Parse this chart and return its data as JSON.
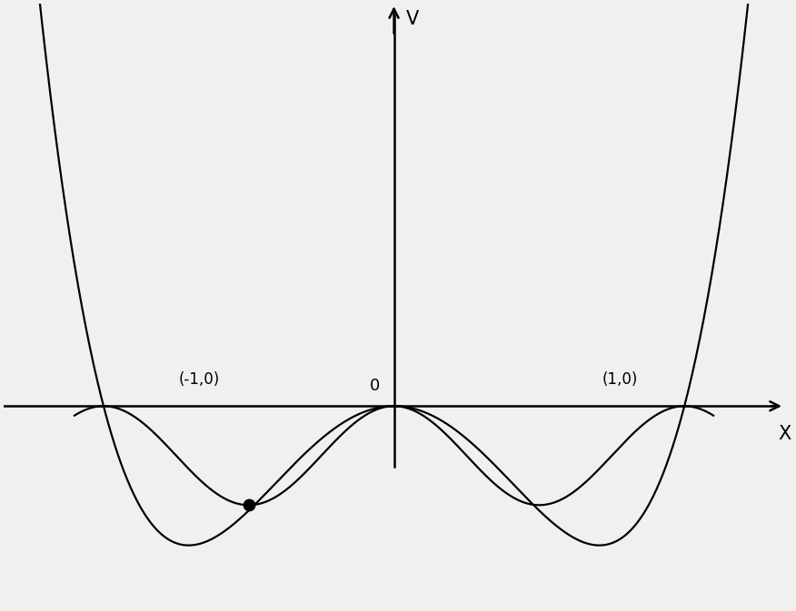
{
  "background_color": "#f0f0f0",
  "curve_color": "#000000",
  "axis_color": "#000000",
  "dot_color": "#000000",
  "label_minus1": "(-1,0)",
  "label_plus1": "(1,0)",
  "label_origin": "0",
  "xlabel": "X",
  "ylabel": "V",
  "xlim": [
    -1.9,
    1.9
  ],
  "ylim": [
    -0.65,
    1.3
  ],
  "line_width": 1.6,
  "dot_size": 80,
  "font_size": 13,
  "curve_scale": 0.45,
  "sin_amplitude": 0.32,
  "sin_period_half": 1.0
}
